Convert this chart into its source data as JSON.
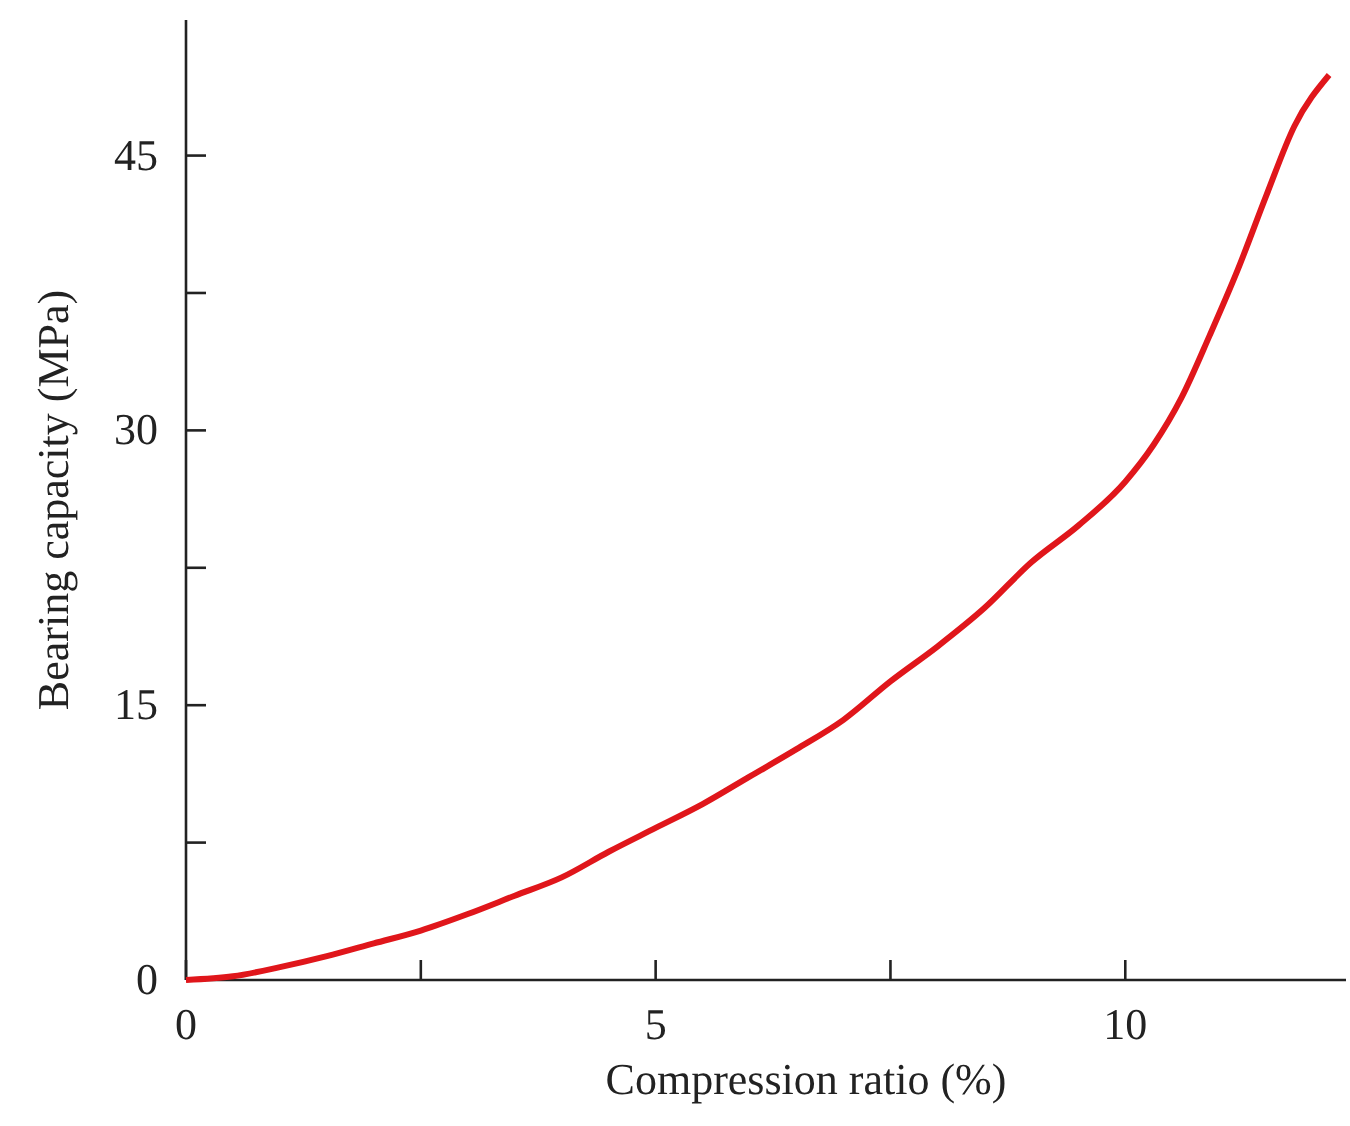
{
  "chart_data": {
    "type": "line",
    "xlabel": "Compression ratio (%)",
    "ylabel": "Bearing capacity (MPa)",
    "xlim": [
      0,
      12.35
    ],
    "ylim": [
      0,
      52.4
    ],
    "xticks": [
      0,
      {
        "value": 2.5,
        "label": null
      },
      5,
      {
        "value": 7.5,
        "label": null
      },
      10
    ],
    "yticks": [
      0,
      {
        "value": 7.5,
        "label": null
      },
      15,
      {
        "value": 22.5,
        "label": null
      },
      30,
      {
        "value": 37.5,
        "label": null
      },
      45
    ],
    "grid": false,
    "marker": "none",
    "line_style": "solid",
    "series": [
      {
        "color": "#e0161b",
        "x": [
          0,
          0.5,
          1,
          1.5,
          2,
          2.5,
          3,
          3.5,
          4,
          4.5,
          5,
          5.5,
          6,
          6.5,
          7,
          7.5,
          8,
          8.5,
          9,
          9.5,
          10,
          10.3,
          10.6,
          10.9,
          11.2,
          11.5,
          11.8,
          12.17
        ],
        "values": [
          0,
          0.2,
          0.7,
          1.3,
          2,
          2.7,
          3.6,
          4.6,
          5.6,
          7,
          8.3,
          9.6,
          11.1,
          12.6,
          14.2,
          16.3,
          18.2,
          20.3,
          22.8,
          24.8,
          27.2,
          29.2,
          31.8,
          35.2,
          38.8,
          42.8,
          46.6,
          49.4
        ]
      }
    ]
  }
}
